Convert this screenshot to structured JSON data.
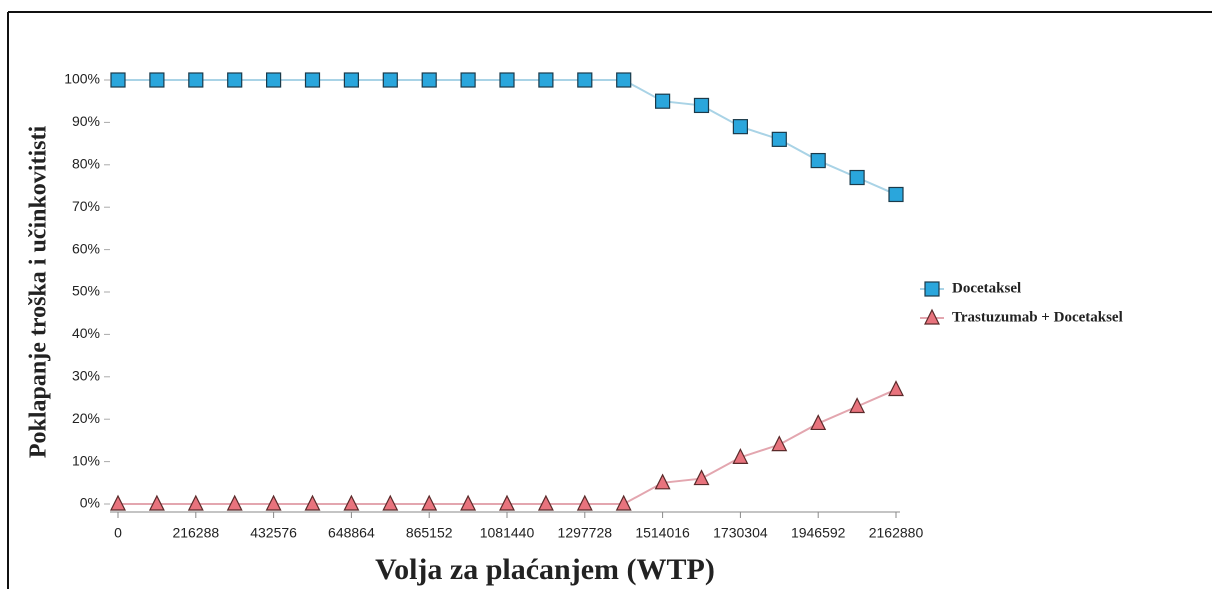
{
  "chart_data": {
    "type": "line",
    "y_label": "Poklapanje troška i učinkovitisti",
    "x_label": "Volja za plaćanjem (WTP)",
    "x": [
      0,
      108144,
      216288,
      324432,
      432576,
      540720,
      648864,
      757008,
      865152,
      973296,
      1081440,
      1189584,
      1297728,
      1405872,
      1514016,
      1622160,
      1730304,
      1838448,
      1946592,
      2054736,
      2162880
    ],
    "series": [
      {
        "name": "Docetaksel",
        "color": "#2aa6dc",
        "line_color": "#a9d3e6",
        "marker": "square",
        "values": [
          100,
          100,
          100,
          100,
          100,
          100,
          100,
          100,
          100,
          100,
          100,
          100,
          100,
          100,
          95,
          94,
          89,
          86,
          81,
          77,
          73
        ]
      },
      {
        "name": "Trastuzumab + Docetaksel",
        "color": "#e8737d",
        "line_color": "#e3a6af",
        "marker": "triangle",
        "values": [
          0,
          0,
          0,
          0,
          0,
          0,
          0,
          0,
          0,
          0,
          0,
          0,
          0,
          0,
          5,
          6,
          11,
          14,
          19,
          23,
          27
        ]
      }
    ],
    "xlim": [
      0,
      2162880
    ],
    "xticks": [
      0,
      216288,
      432576,
      648864,
      865152,
      1081440,
      1297728,
      1514016,
      1730304,
      1946592,
      2162880
    ],
    "ylim": [
      0,
      100
    ],
    "yticks": [
      {
        "value": 0,
        "label": "0%"
      },
      {
        "value": 10,
        "label": "10%"
      },
      {
        "value": 20,
        "label": "20%"
      },
      {
        "value": 30,
        "label": "30%"
      },
      {
        "value": 40,
        "label": "40%"
      },
      {
        "value": 50,
        "label": "50%"
      },
      {
        "value": 60,
        "label": "60%"
      },
      {
        "value": 70,
        "label": "70%"
      },
      {
        "value": 80,
        "label": "80%"
      },
      {
        "value": 90,
        "label": "90%"
      },
      {
        "value": 100,
        "label": "100%"
      }
    ]
  }
}
